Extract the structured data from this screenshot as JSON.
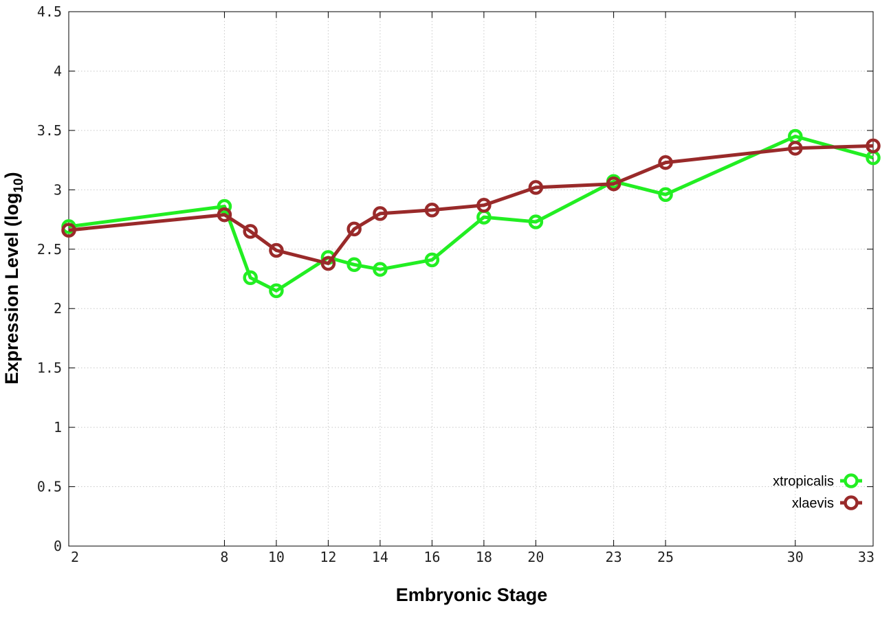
{
  "chart_data": {
    "type": "line",
    "xlabel": "Embryonic Stage",
    "ylabel_main": "Expression Level (log",
    "ylabel_sub": "10",
    "ylabel_close": ")",
    "ylim": [
      0,
      4.5
    ],
    "y_ticks": [
      "0",
      "0.5",
      "1",
      "1.5",
      "2",
      "2.5",
      "3",
      "3.5",
      "4",
      "4.5"
    ],
    "y_tick_values": [
      0,
      0.5,
      1,
      1.5,
      2,
      2.5,
      3,
      3.5,
      4,
      4.5
    ],
    "categories": [
      "2",
      "8",
      "9",
      "10",
      "12",
      "13",
      "14",
      "16",
      "18",
      "20",
      "23",
      "25",
      "30",
      "33"
    ],
    "x_ticks": [
      "2",
      "8",
      "10",
      "12",
      "14",
      "16",
      "18",
      "20",
      "23",
      "25",
      "30",
      "33"
    ],
    "x_tick_values": [
      2,
      8,
      10,
      12,
      14,
      16,
      18,
      20,
      23,
      25,
      30,
      33
    ],
    "x": [
      2,
      8,
      9,
      10,
      12,
      13,
      14,
      16,
      18,
      20,
      23,
      25,
      30,
      33
    ],
    "grid": true,
    "legend_position": "bottom-right",
    "series": [
      {
        "name": "xtropicalis",
        "color": "#22ee22",
        "values": [
          2.69,
          2.86,
          2.26,
          2.15,
          2.43,
          2.37,
          2.33,
          2.41,
          2.77,
          2.73,
          3.07,
          2.96,
          3.45,
          3.27
        ]
      },
      {
        "name": "xlaevis",
        "color": "#992a2a",
        "values": [
          2.66,
          2.79,
          2.65,
          2.49,
          2.38,
          2.67,
          2.8,
          2.83,
          2.87,
          3.02,
          3.05,
          3.23,
          3.35,
          3.37
        ]
      }
    ]
  }
}
